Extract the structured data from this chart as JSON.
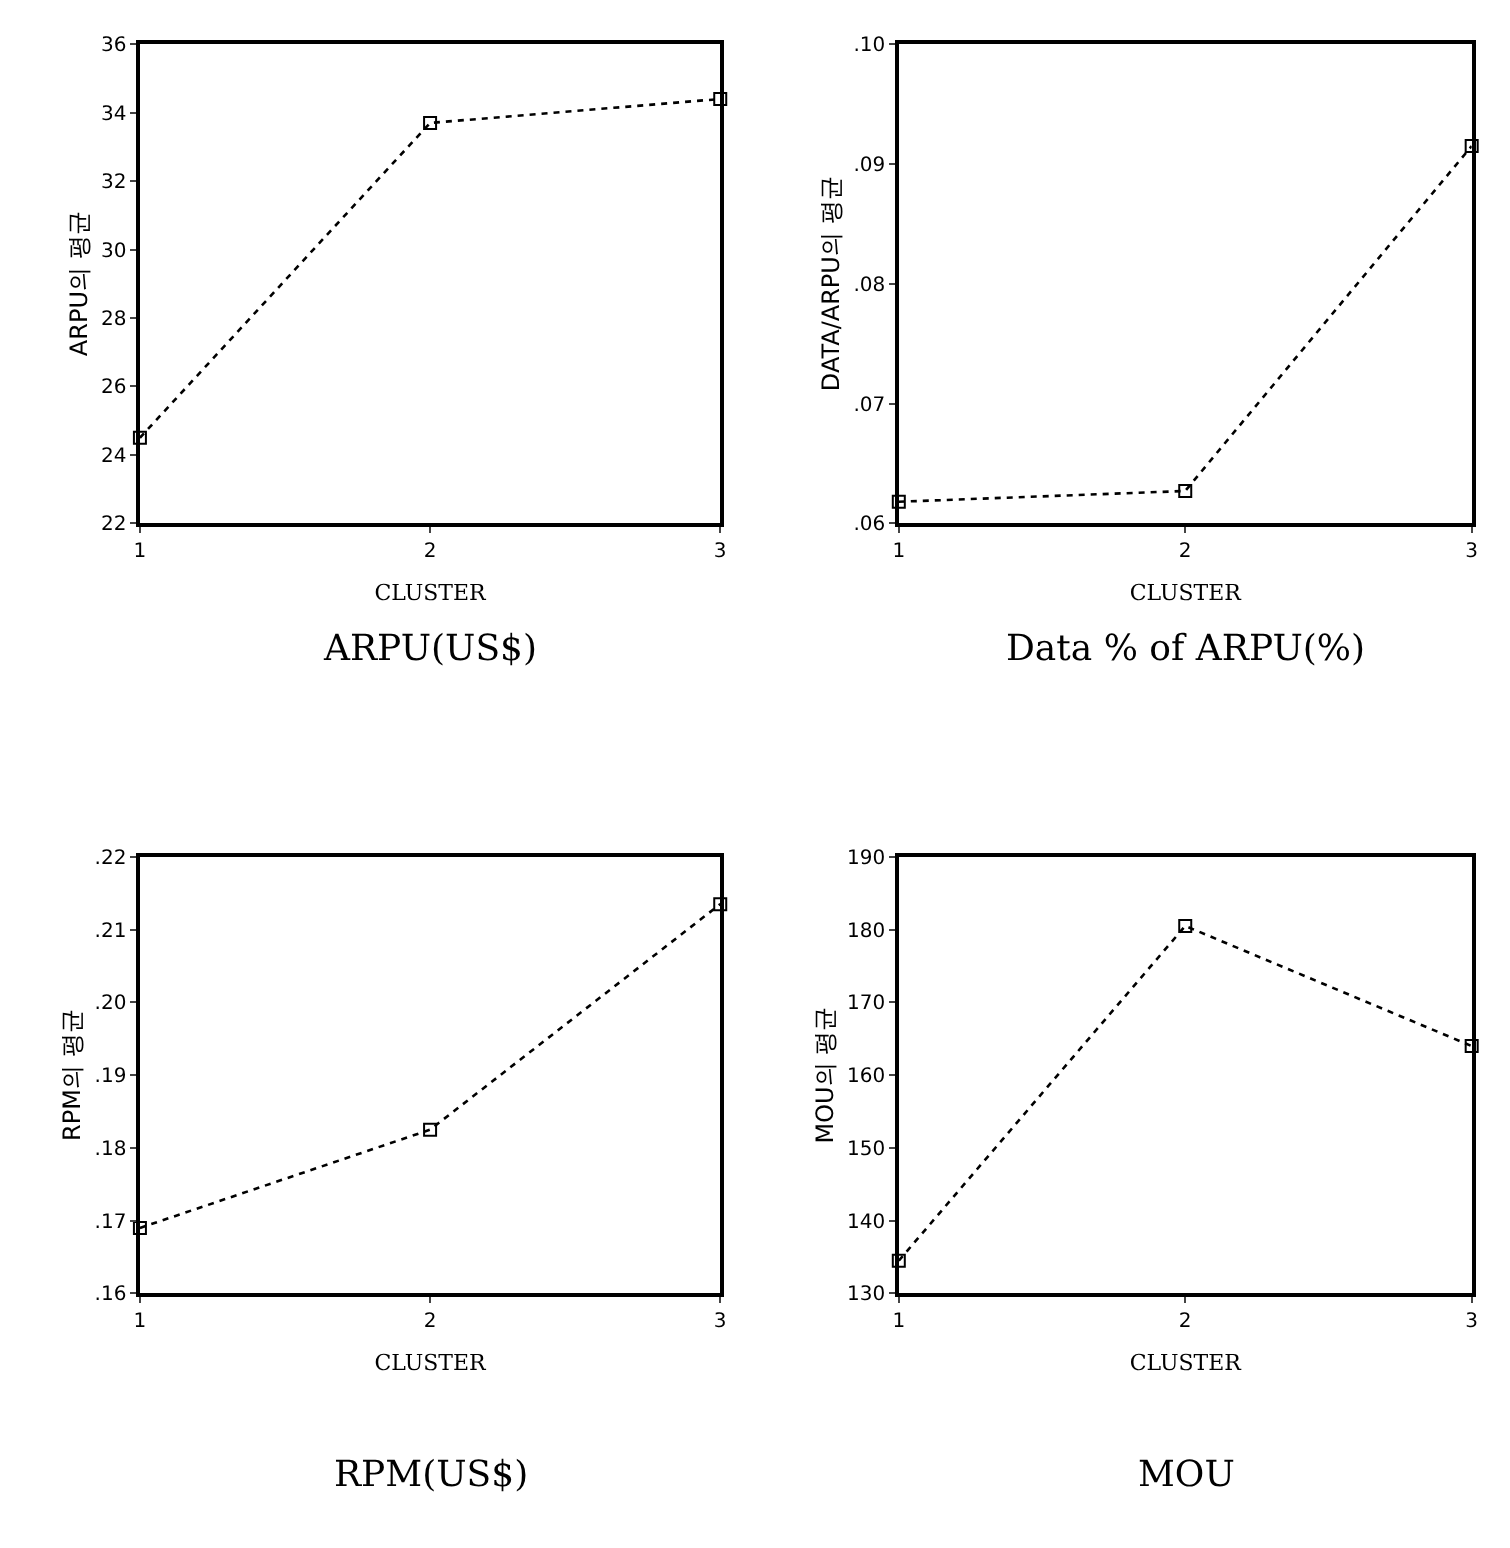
{
  "chart_data": [
    {
      "type": "line",
      "title": "ARPU(US$)",
      "xlabel": "CLUSTER",
      "ylabel": "ARPU의 평균",
      "x": [
        1,
        2,
        3
      ],
      "series": [
        {
          "color": "#000000",
          "values": [
            24.5,
            33.7,
            34.4
          ]
        }
      ],
      "xlim": [
        1,
        3
      ],
      "xticks": [
        1,
        2,
        3
      ],
      "ylim": [
        22,
        36
      ],
      "yticks": [
        22,
        24,
        26,
        28,
        30,
        32,
        34,
        36
      ],
      "marker": "square",
      "line_style": "dotted"
    },
    {
      "type": "line",
      "title": "Data % of ARPU(%)",
      "xlabel": "CLUSTER",
      "ylabel": "DATA/ARPU의 평균",
      "x": [
        1,
        2,
        3
      ],
      "series": [
        {
          "color": "#000000",
          "values": [
            0.0618,
            0.0627,
            0.0915
          ]
        }
      ],
      "xlim": [
        1,
        3
      ],
      "xticks": [
        1,
        2,
        3
      ],
      "ylim": [
        0.06,
        0.1
      ],
      "yticks": [
        {
          "value": 0.06,
          "label": ".06"
        },
        {
          "value": 0.07,
          "label": ".07"
        },
        {
          "value": 0.08,
          "label": ".08"
        },
        {
          "value": 0.09,
          "label": ".09"
        },
        {
          "value": 0.1,
          "label": ".10"
        }
      ],
      "marker": "square",
      "line_style": "dotted"
    },
    {
      "type": "line",
      "title": "RPM(US$)",
      "xlabel": "CLUSTER",
      "ylabel": "RPM의 평균",
      "x": [
        1,
        2,
        3
      ],
      "series": [
        {
          "color": "#000000",
          "values": [
            0.169,
            0.1825,
            0.2135
          ]
        }
      ],
      "xlim": [
        1,
        3
      ],
      "xticks": [
        1,
        2,
        3
      ],
      "ylim": [
        0.16,
        0.22
      ],
      "yticks": [
        {
          "value": 0.16,
          "label": ".16"
        },
        {
          "value": 0.17,
          "label": ".17"
        },
        {
          "value": 0.18,
          "label": ".18"
        },
        {
          "value": 0.19,
          "label": ".19"
        },
        {
          "value": 0.2,
          "label": ".20"
        },
        {
          "value": 0.21,
          "label": ".21"
        },
        {
          "value": 0.22,
          "label": ".22"
        }
      ],
      "marker": "square",
      "line_style": "dotted"
    },
    {
      "type": "line",
      "title": "MOU",
      "xlabel": "CLUSTER",
      "ylabel": "MOU의 평균",
      "x": [
        1,
        2,
        3
      ],
      "series": [
        {
          "color": "#000000",
          "values": [
            134.5,
            180.5,
            164
          ]
        }
      ],
      "xlim": [
        1,
        3
      ],
      "xticks": [
        1,
        2,
        3
      ],
      "ylim": [
        130,
        190
      ],
      "yticks": [
        130,
        140,
        150,
        160,
        170,
        180,
        190
      ],
      "marker": "square",
      "line_style": "dotted"
    }
  ]
}
